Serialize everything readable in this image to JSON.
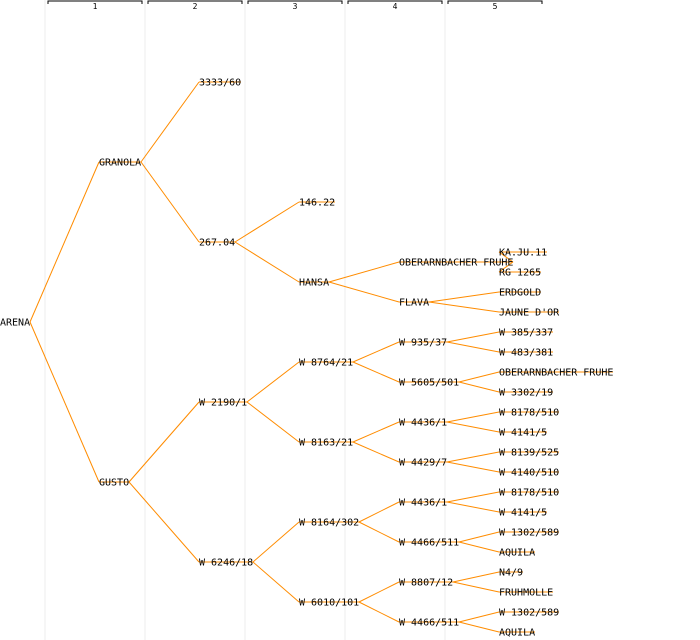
{
  "generations": [
    "1",
    "2",
    "3",
    "4",
    "5"
  ],
  "colors": {
    "edge": "#ff8c00",
    "text": "#000000",
    "grid": "#ececec"
  },
  "tree": {
    "name": "ARENA",
    "children": [
      {
        "name": "GRANOLA",
        "children": [
          {
            "name": "3333/60"
          },
          {
            "name": "267.04",
            "children": [
              {
                "name": "146.22"
              },
              {
                "name": "HANSA",
                "children": [
                  {
                    "name": "OBERARNBACHER FRUHE",
                    "children": [
                      {
                        "name": "KA.JU.11"
                      },
                      {
                        "name": "RG 1265"
                      }
                    ]
                  },
                  {
                    "name": "FLAVA",
                    "children": [
                      {
                        "name": "ERDGOLD"
                      },
                      {
                        "name": "JAUNE D'OR"
                      }
                    ]
                  }
                ]
              }
            ]
          }
        ]
      },
      {
        "name": "GUSTO",
        "children": [
          {
            "name": "W 2190/1",
            "children": [
              {
                "name": "W 8764/21",
                "children": [
                  {
                    "name": "W 935/37",
                    "children": [
                      {
                        "name": "W 385/337"
                      },
                      {
                        "name": "W 483/381"
                      }
                    ]
                  },
                  {
                    "name": "W 5605/501",
                    "children": [
                      {
                        "name": "OBERARNBACHER FRUHE"
                      },
                      {
                        "name": "W 3302/19"
                      }
                    ]
                  }
                ]
              },
              {
                "name": "W 8163/21",
                "children": [
                  {
                    "name": "W 4436/1",
                    "children": [
                      {
                        "name": "W 8178/510"
                      },
                      {
                        "name": "W 4141/5"
                      }
                    ]
                  },
                  {
                    "name": "W 4429/7",
                    "children": [
                      {
                        "name": "W 8139/525"
                      },
                      {
                        "name": "W 4140/510"
                      }
                    ]
                  }
                ]
              }
            ]
          },
          {
            "name": "W 6246/18",
            "children": [
              {
                "name": "W 8164/302",
                "children": [
                  {
                    "name": "W 4436/1",
                    "children": [
                      {
                        "name": "W 8178/510"
                      },
                      {
                        "name": "W 4141/5"
                      }
                    ]
                  },
                  {
                    "name": "W 4466/511",
                    "children": [
                      {
                        "name": "W 1302/589"
                      },
                      {
                        "name": "AQUILA"
                      }
                    ]
                  }
                ]
              },
              {
                "name": "W 6010/101",
                "children": [
                  {
                    "name": "W 8807/12",
                    "children": [
                      {
                        "name": "N4/9"
                      },
                      {
                        "name": "FRUHMOLLE"
                      }
                    ]
                  },
                  {
                    "name": "W 4466/511",
                    "children": [
                      {
                        "name": "W 1302/589"
                      },
                      {
                        "name": "AQUILA"
                      }
                    ]
                  }
                ]
              }
            ]
          }
        ]
      }
    ]
  }
}
